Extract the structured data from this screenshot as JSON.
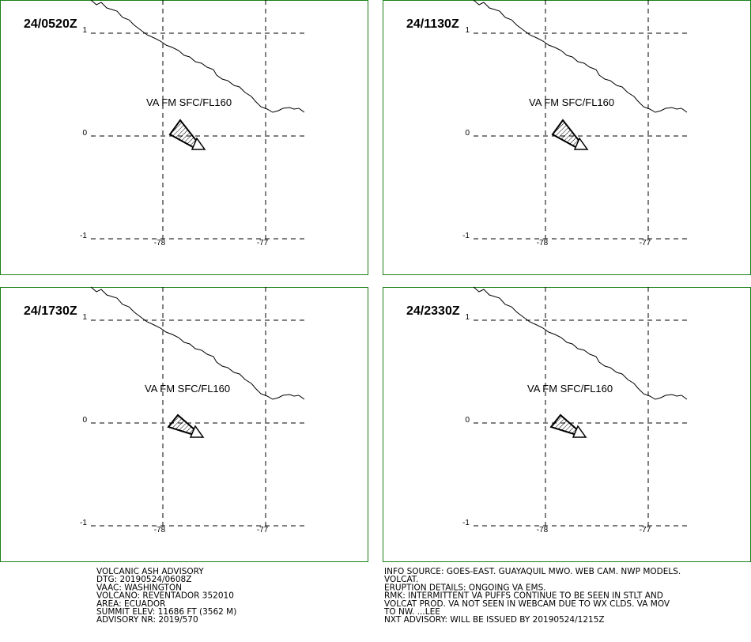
{
  "panels": [
    {
      "time": "24/0520Z",
      "label": "VA FM SFC/FL160"
    },
    {
      "time": "24/1130Z",
      "label": "VA FM SFC/FL160"
    },
    {
      "time": "24/1730Z",
      "label": "VA FM SFC/FL160"
    },
    {
      "time": "24/2330Z",
      "label": "VA FM SFC/FL160"
    }
  ],
  "lat_ticks": [
    1,
    0,
    -1
  ],
  "lon_ticks": [
    -78,
    -77
  ],
  "advisory_left": [
    "VOLCANIC ASH ADVISORY",
    "DTG: 20190524/0608Z",
    "VAAC: WASHINGTON",
    "VOLCANO: REVENTADOR 352010",
    "AREA: ECUADOR",
    "SUMMIT ELEV: 11686 FT (3562 M)",
    "ADVISORY NR: 2019/570"
  ],
  "advisory_right": [
    "INFO SOURCE: GOES-EAST. GUAYAQUIL MWO. WEB CAM. NWP MODELS.",
    "VOLCAT.",
    "ERUPTION DETAILS: ONGOING VA EMS.",
    "RMK: INTERMITTENT VA PUFFS CONTINUE TO BE SEEN IN STLT AND",
    "VOLCAT PROD. VA NOT SEEN IN WEBCAM DUE TO WX CLDS. VA MOV",
    "TO NW. ...LEE",
    "NXT ADVISORY: WILL BE ISSUED BY 20190524/1215Z"
  ]
}
